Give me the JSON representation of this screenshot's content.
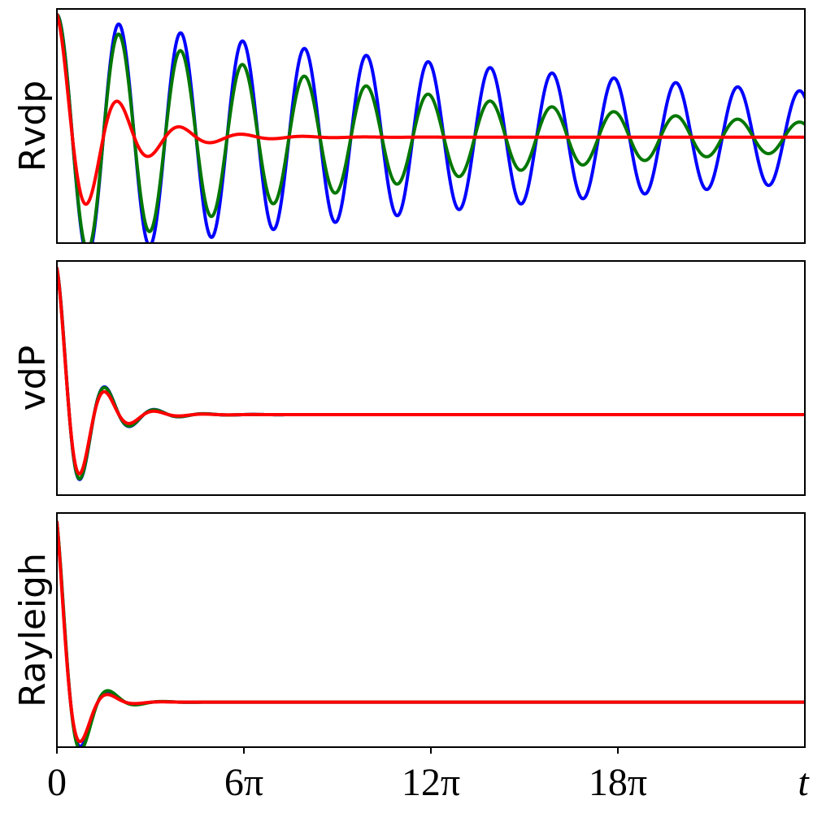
{
  "chart_data": {
    "type": "line",
    "layout": "three stacked panels sharing x-axis",
    "grid": false,
    "legend": "none",
    "x_axis": {
      "range": [
        0,
        75.4
      ],
      "ticks": [
        {
          "value": 0,
          "label": "0"
        },
        {
          "value": 18.85,
          "label": "6π"
        },
        {
          "value": 37.7,
          "label": "12π"
        },
        {
          "value": 56.55,
          "label": "18π"
        }
      ],
      "end_label": "t"
    },
    "panels": [
      {
        "ylabel": "Rvdp",
        "yticks": "none",
        "ylim": [
          -1.05,
          1.05
        ],
        "series": [
          {
            "color": "#0000ff",
            "start": 1.0,
            "offset": -0.1,
            "amplitude": 0.98,
            "decay": 0.013,
            "period": 6.24
          },
          {
            "color": "#007700",
            "start": 1.0,
            "offset": -0.1,
            "amplitude": 0.95,
            "decay": 0.028,
            "period": 6.24
          },
          {
            "color": "#ff0000",
            "start": 1.0,
            "offset": -0.1,
            "amplitude": 0.95,
            "decay": 0.2,
            "period": 6.24
          }
        ]
      },
      {
        "ylabel": "vdP",
        "yticks": "none",
        "ylim": [
          -0.55,
          1.05
        ],
        "series": [
          {
            "color": "#0000ff",
            "start": 1.0,
            "offset": 0.0,
            "amplitude": 1.0,
            "decay": 0.34,
            "period": 5.0
          },
          {
            "color": "#007700",
            "start": 1.0,
            "offset": 0.0,
            "amplitude": 1.0,
            "decay": 0.345,
            "period": 5.0
          },
          {
            "color": "#ff0000",
            "start": 1.0,
            "offset": 0.0,
            "amplitude": 1.0,
            "decay": 0.38,
            "period": 5.0
          }
        ]
      },
      {
        "ylabel": "Rayleigh",
        "yticks": "none",
        "ylim": [
          -0.25,
          1.05
        ],
        "series": [
          {
            "color": "#0000ff",
            "start": 1.0,
            "offset": 0.0,
            "amplitude": 1.0,
            "decay": 0.55,
            "period": 5.5
          },
          {
            "color": "#007700",
            "start": 1.0,
            "offset": 0.0,
            "amplitude": 1.0,
            "decay": 0.52,
            "period": 5.5
          },
          {
            "color": "#ff0000",
            "start": 1.0,
            "offset": 0.0,
            "amplitude": 1.0,
            "decay": 0.6,
            "period": 5.5
          }
        ]
      }
    ]
  }
}
